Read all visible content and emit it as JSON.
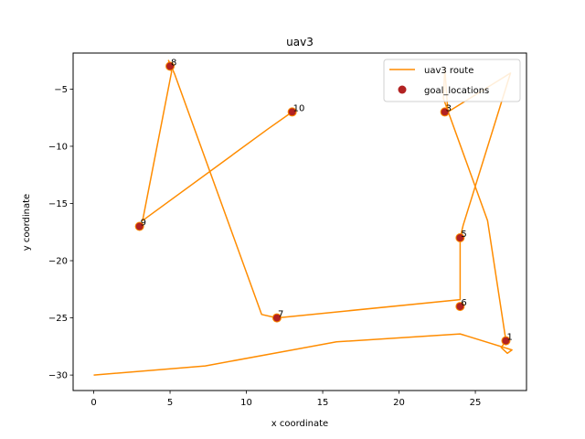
{
  "chart_data": {
    "type": "scatter",
    "title": "uav3",
    "xlabel": "x coordinate",
    "ylabel": "y coordinate",
    "xlim": [
      -1.35,
      28.35
    ],
    "ylim": [
      -31.35,
      -1.85
    ],
    "xticks": [
      0,
      5,
      10,
      15,
      20,
      25
    ],
    "yticks": [
      -30,
      -25,
      -20,
      -15,
      -10,
      -5
    ],
    "grid": false,
    "legend_position": "top-right",
    "series": [
      {
        "name": "uav3 route",
        "kind": "line",
        "color": "#ff8c00",
        "points": [
          [
            0,
            -30
          ],
          [
            7.3,
            -29.2
          ],
          [
            15.9,
            -27.1
          ],
          [
            24,
            -26.4
          ],
          [
            27.4,
            -27.8
          ],
          [
            27.1,
            -28.1
          ],
          [
            26.7,
            -27.6
          ],
          [
            27,
            -27
          ],
          [
            25.8,
            -16.5
          ],
          [
            22.9,
            -5.8
          ],
          [
            23,
            -3.2
          ],
          [
            23.2,
            -7
          ],
          [
            27.3,
            -3.6
          ],
          [
            24.2,
            -16.9
          ],
          [
            24,
            -18
          ],
          [
            24,
            -23.4
          ],
          [
            12,
            -25
          ],
          [
            11,
            -24.7
          ],
          [
            5.3,
            -3.7
          ],
          [
            4.9,
            -2.5
          ],
          [
            5.1,
            -3.5
          ],
          [
            3.2,
            -16.5
          ],
          [
            11.4,
            -8.5
          ],
          [
            13,
            -7
          ]
        ]
      },
      {
        "name": "goal_locations",
        "kind": "scatter",
        "color": "#b22222",
        "edge_color": "#ff8c00",
        "points": [
          [
            27,
            -27
          ],
          [
            24,
            -24
          ],
          [
            12,
            -25
          ],
          [
            24,
            -18
          ],
          [
            23,
            -7
          ],
          [
            5,
            -3
          ],
          [
            3,
            -17
          ],
          [
            13,
            -7
          ]
        ]
      }
    ],
    "annotations": [
      {
        "text": "1",
        "x": 27,
        "y": -27
      },
      {
        "text": "6",
        "x": 24,
        "y": -24
      },
      {
        "text": "7",
        "x": 12,
        "y": -25
      },
      {
        "text": "5",
        "x": 24,
        "y": -18
      },
      {
        "text": "3",
        "x": 23,
        "y": -7
      },
      {
        "text": "8",
        "x": 5,
        "y": -3
      },
      {
        "text": "9",
        "x": 3,
        "y": -17
      },
      {
        "text": "10",
        "x": 13,
        "y": -7
      }
    ]
  }
}
